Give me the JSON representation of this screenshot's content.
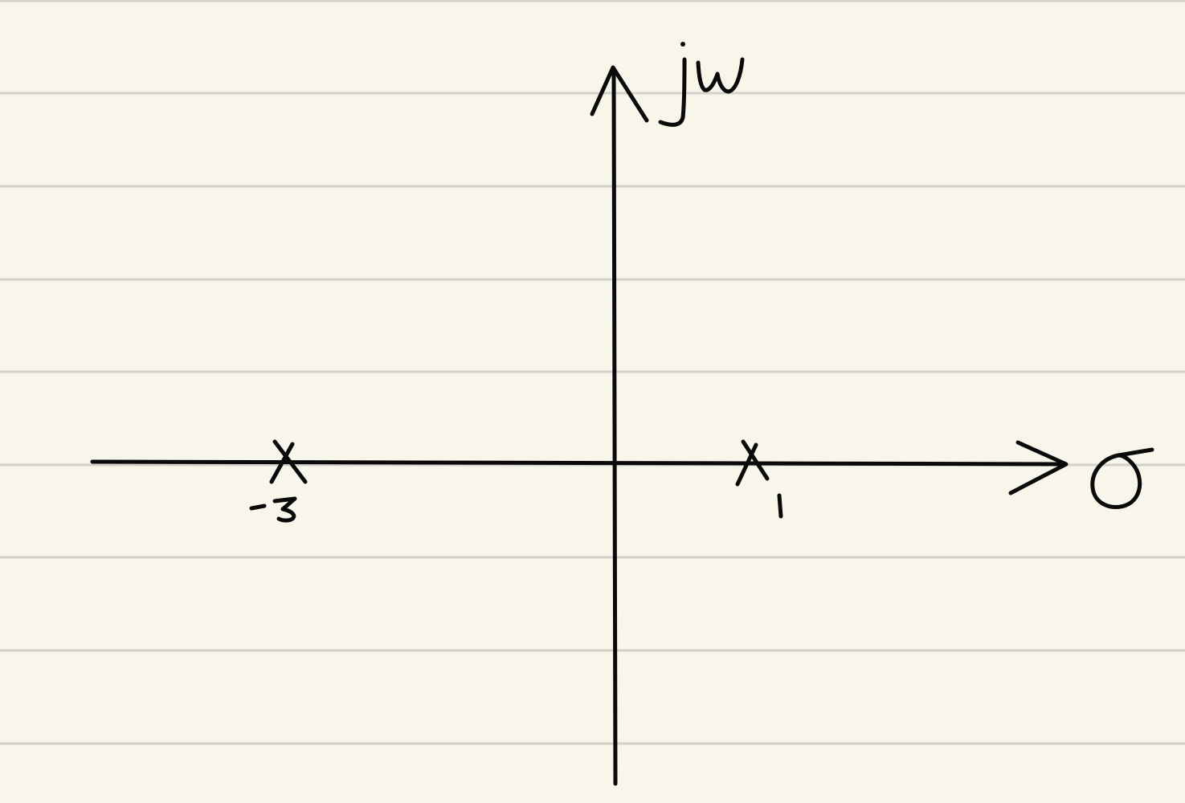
{
  "paper": {
    "background_color": "#f8f6ea",
    "rule_color": "#d3d1c9",
    "ink_color": "#0a0a0a"
  },
  "axes": {
    "horizontal_label": "σ",
    "vertical_label": "jw"
  },
  "poles": [
    {
      "label": "-3",
      "value": -3
    },
    {
      "label": "1",
      "value": 1
    }
  ]
}
